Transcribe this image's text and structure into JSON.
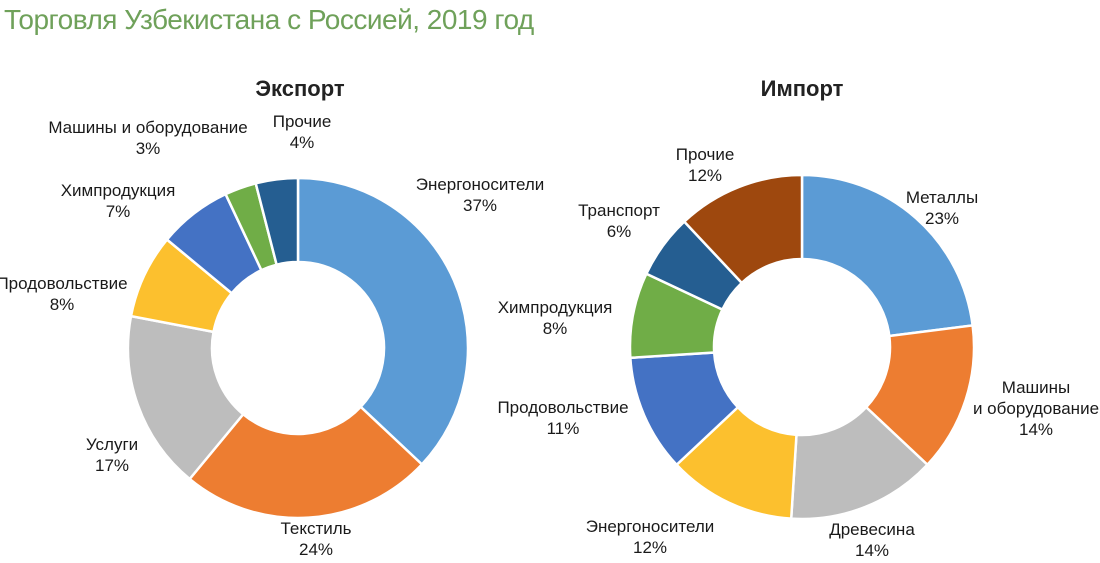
{
  "page_title": "Торговля Узбекистана с Россией, 2019 год",
  "colors": {
    "title": "#6fa15a",
    "blue": "#5b9bd5",
    "orange": "#ed7d31",
    "gray": "#bdbdbd",
    "yellow": "#fcc02e",
    "darkblue": "#4472c4",
    "green": "#70ad47",
    "navy": "#255e91",
    "brown": "#9e480e"
  },
  "chart_data": [
    {
      "type": "pie",
      "donut": true,
      "title": "Экспорт",
      "slices": [
        {
          "lines": [
            "Энергоносители",
            "37%"
          ],
          "value": 37,
          "color": "#5b9bd5"
        },
        {
          "lines": [
            "Текстиль",
            "24%"
          ],
          "value": 24,
          "color": "#ed7d31"
        },
        {
          "lines": [
            "Услуги",
            "17%"
          ],
          "value": 17,
          "color": "#bdbdbd"
        },
        {
          "lines": [
            "Продовольствие",
            "8%"
          ],
          "value": 8,
          "color": "#fcc02e"
        },
        {
          "lines": [
            "Химпродукция",
            "7%"
          ],
          "value": 7,
          "color": "#4472c4"
        },
        {
          "lines": [
            "Машины и оборудование",
            "3%"
          ],
          "value": 3,
          "color": "#70ad47"
        },
        {
          "lines": [
            "Прочие",
            "4%"
          ],
          "value": 4,
          "color": "#255e91"
        }
      ]
    },
    {
      "type": "pie",
      "donut": true,
      "title": "Импорт",
      "slices": [
        {
          "lines": [
            "Металлы",
            "23%"
          ],
          "value": 23,
          "color": "#5b9bd5"
        },
        {
          "lines": [
            "Машины",
            "и оборудование",
            "14%"
          ],
          "value": 14,
          "color": "#ed7d31"
        },
        {
          "lines": [
            "Древесина",
            "14%"
          ],
          "value": 14,
          "color": "#bdbdbd"
        },
        {
          "lines": [
            "Энергоносители",
            "12%"
          ],
          "value": 12,
          "color": "#fcc02e"
        },
        {
          "lines": [
            "Продовольствие",
            "11%"
          ],
          "value": 11,
          "color": "#4472c4"
        },
        {
          "lines": [
            "Химпродукция",
            "8%"
          ],
          "value": 8,
          "color": "#70ad47"
        },
        {
          "lines": [
            "Транспорт",
            "6%"
          ],
          "value": 6,
          "color": "#255e91"
        },
        {
          "lines": [
            "Прочие",
            "12%"
          ],
          "value": 12,
          "color": "#9e480e"
        }
      ]
    }
  ]
}
